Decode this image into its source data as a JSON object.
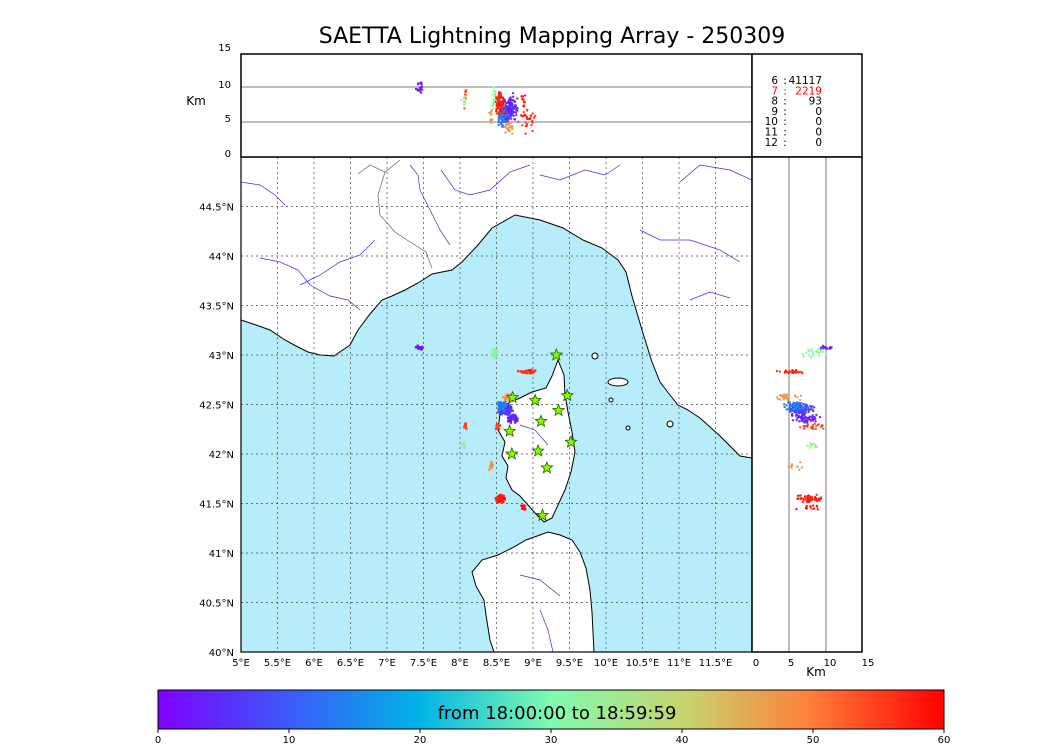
{
  "title": "SAETTA Lightning Mapping Array - 250309",
  "colors": {
    "sea": "#b7ecfb",
    "land": "#ffffff",
    "coast": "#000000",
    "river": "#3030e8",
    "border": "#606060",
    "station": "#7fff00",
    "station_edge": "#2a5a00"
  },
  "altitude_panel": {
    "ylabel": "Km",
    "yticks": [
      "0",
      "5",
      "10",
      "15"
    ]
  },
  "side_panel": {
    "xlabel": "Km",
    "xticks": [
      "0",
      "5",
      "10",
      "15"
    ]
  },
  "map": {
    "lon_ticks": [
      "5°E",
      "5.5°E",
      "6°E",
      "6.5°E",
      "7°E",
      "7.5°E",
      "8°E",
      "8.5°E",
      "9°E",
      "9.5°E",
      "10°E",
      "10.5°E",
      "11°E",
      "11.5°E"
    ],
    "lat_ticks": [
      "40°N",
      "40.5°N",
      "41°N",
      "41.5°N",
      "42°N",
      "42.5°N",
      "43°N",
      "43.5°N",
      "44°N",
      "44.5°N"
    ],
    "lon_range": [
      5,
      12
    ],
    "lat_range": [
      40,
      45
    ]
  },
  "station_counts": [
    {
      "stations": "6",
      "count": "41117",
      "color": "#000000"
    },
    {
      "stations": "7",
      "count": "2219",
      "color": "#ff0000"
    },
    {
      "stations": "8",
      "count": "93",
      "color": "#000000"
    },
    {
      "stations": "9",
      "count": "0",
      "color": "#000000"
    },
    {
      "stations": "10",
      "count": "0",
      "color": "#000000"
    },
    {
      "stations": "11",
      "count": "0",
      "color": "#000000"
    },
    {
      "stations": "12",
      "count": "0",
      "color": "#000000"
    }
  ],
  "colorbar": {
    "label": "from 18:00:00 to 18:59:59",
    "ticks": [
      "0",
      "10",
      "20",
      "30",
      "40",
      "50",
      "60"
    ]
  },
  "stations": [
    [
      9.32,
      43.0
    ],
    [
      8.72,
      42.57
    ],
    [
      9.03,
      42.54
    ],
    [
      9.47,
      42.59
    ],
    [
      9.35,
      42.44
    ],
    [
      9.11,
      42.33
    ],
    [
      8.68,
      42.23
    ],
    [
      9.52,
      42.12
    ],
    [
      9.07,
      42.03
    ],
    [
      8.71,
      42.0
    ],
    [
      9.19,
      41.86
    ],
    [
      9.13,
      41.38
    ]
  ],
  "chart_data": {
    "type": "scatter",
    "title": "SAETTA Lightning Mapping Array - 250309",
    "xlabel": "",
    "ylabel": "",
    "xlim": [
      5,
      12
    ],
    "ylim": [
      40,
      45
    ],
    "color_scale": {
      "label": "from 18:00:00 to 18:59:59",
      "range": [
        0,
        60
      ],
      "colormap": "rainbow"
    },
    "clusters": [
      {
        "lon": 7.45,
        "lat": 43.07,
        "alt": 10.0,
        "t": 2,
        "sx": 0.04,
        "sy": 0.02,
        "n": 18
      },
      {
        "lon": 8.47,
        "lat": 43.02,
        "alt": 8.5,
        "t": 32,
        "sx": 0.04,
        "sy": 0.04,
        "n": 25
      },
      {
        "lon": 8.93,
        "lat": 42.83,
        "alt": 5.5,
        "t": 57,
        "sx": 0.12,
        "sy": 0.015,
        "n": 30
      },
      {
        "lon": 8.68,
        "lat": 42.57,
        "alt": 5.0,
        "t": 47,
        "sx": 0.07,
        "sy": 0.03,
        "n": 30
      },
      {
        "lon": 8.62,
        "lat": 42.45,
        "alt": 6.5,
        "t": 6,
        "sx": 0.08,
        "sy": 0.05,
        "n": 120
      },
      {
        "lon": 8.72,
        "lat": 42.36,
        "alt": 7.5,
        "t": 4,
        "sx": 0.06,
        "sy": 0.05,
        "n": 60
      },
      {
        "lon": 8.57,
        "lat": 42.48,
        "alt": 6.0,
        "t": 14,
        "sx": 0.06,
        "sy": 0.05,
        "n": 55
      },
      {
        "lon": 8.52,
        "lat": 42.28,
        "alt": 8.0,
        "t": 55,
        "sx": 0.03,
        "sy": 0.03,
        "n": 14
      },
      {
        "lon": 8.07,
        "lat": 42.28,
        "alt": 8.5,
        "t": 56,
        "sx": 0.03,
        "sy": 0.03,
        "n": 10
      },
      {
        "lon": 8.05,
        "lat": 42.08,
        "alt": 8.5,
        "t": 34,
        "sx": 0.03,
        "sy": 0.03,
        "n": 10
      },
      {
        "lon": 8.43,
        "lat": 41.88,
        "alt": 6.5,
        "t": 48,
        "sx": 0.03,
        "sy": 0.03,
        "n": 10
      },
      {
        "lon": 8.55,
        "lat": 41.55,
        "alt": 8.0,
        "t": 58,
        "sx": 0.06,
        "sy": 0.035,
        "n": 60
      },
      {
        "lon": 8.88,
        "lat": 41.46,
        "alt": 8.0,
        "t": 59,
        "sx": 0.03,
        "sy": 0.02,
        "n": 12
      }
    ]
  }
}
